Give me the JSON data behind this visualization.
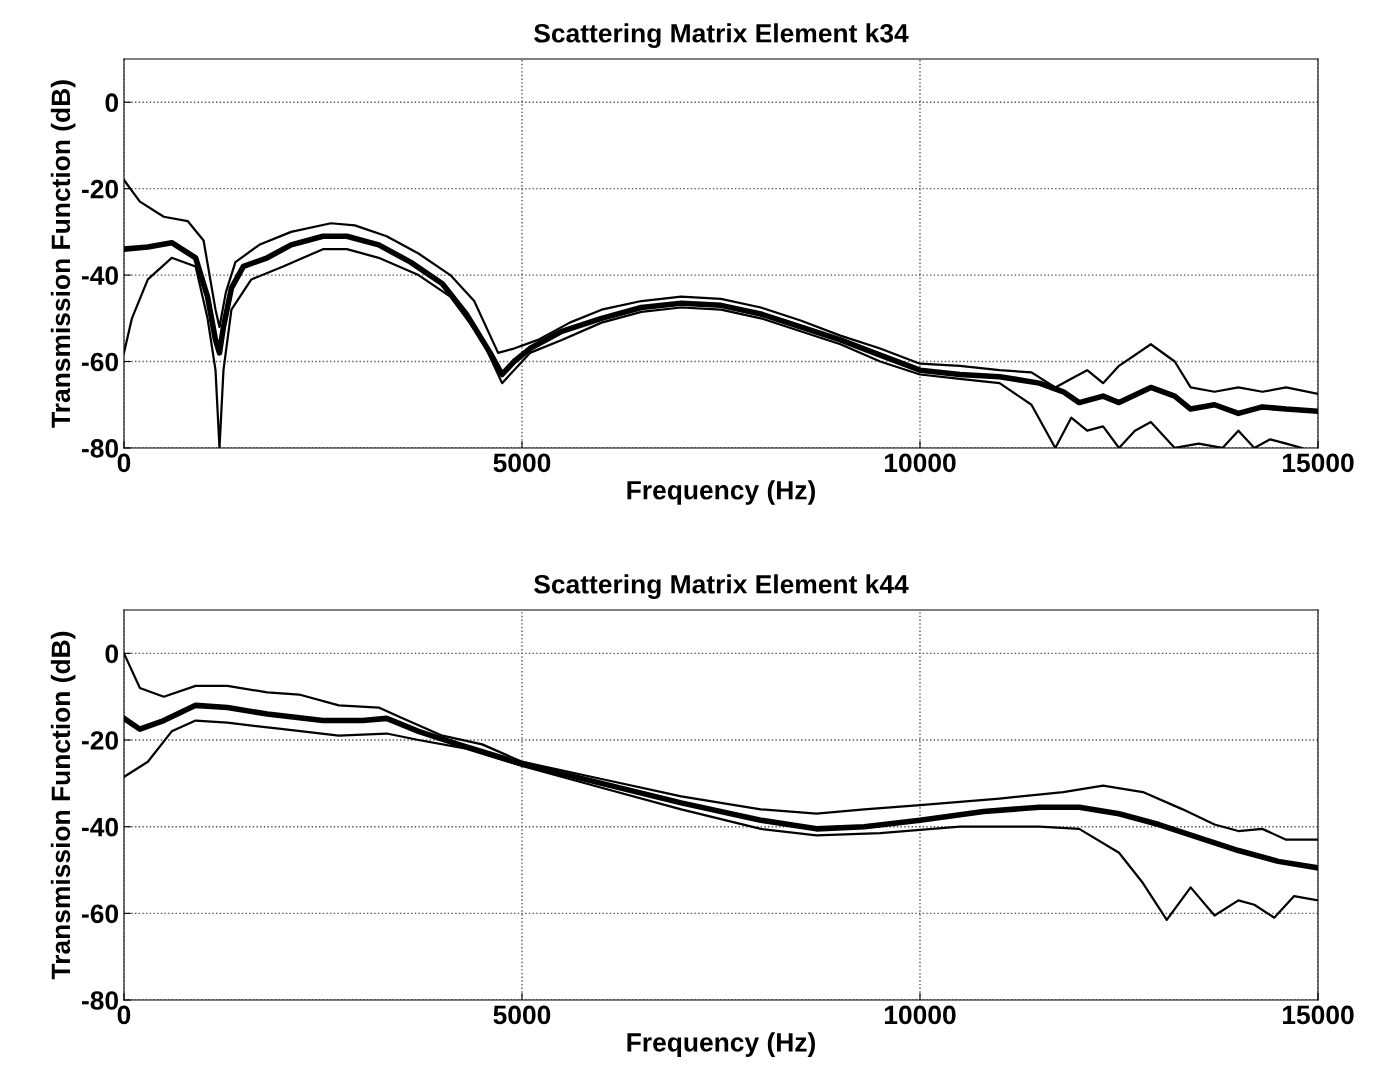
{
  "chart_data": [
    {
      "type": "line",
      "title": "Scattering Matrix Element k34",
      "xlabel": "Frequency (Hz)",
      "ylabel": "Transmission Function (dB)",
      "xlim": [
        0,
        15000
      ],
      "ylim": [
        -80,
        10
      ],
      "xticks": [
        0,
        5000,
        10000,
        15000
      ],
      "yticks": [
        -80,
        -60,
        -40,
        -20,
        0
      ],
      "grid": true,
      "legend": false,
      "marker": "none",
      "line_style": "solid",
      "series": [
        {
          "color": "#000000",
          "x": [
            0,
            300,
            600,
            900,
            1050,
            1150,
            1200,
            1250,
            1350,
            1500,
            1800,
            2100,
            2500,
            2800,
            3200,
            3600,
            4000,
            4300,
            4600,
            4750,
            4900,
            5100,
            5500,
            6000,
            6500,
            7000,
            7500,
            8000,
            8500,
            9000,
            9500,
            10000,
            10500,
            11000,
            11500,
            11800,
            12000,
            12300,
            12500,
            12900,
            13200,
            13400,
            13700,
            14000,
            14300,
            14600,
            15000
          ],
          "values": [
            -34,
            -33.5,
            -32.5,
            -36,
            -45,
            -55,
            -58,
            -52,
            -43,
            -38,
            -36,
            -33,
            -31,
            -31,
            -33,
            -37,
            -42,
            -49,
            -58,
            -63,
            -60,
            -57,
            -53,
            -50,
            -47.5,
            -46.5,
            -47,
            -49,
            -52,
            -55,
            -58.5,
            -62,
            -63,
            -63.5,
            -65,
            -67,
            -69.5,
            -68,
            -69.5,
            -66,
            -68,
            -71,
            -70,
            -72,
            -70.5,
            -71,
            -71.5
          ]
        },
        {
          "color": "#000000",
          "x": [
            0,
            200,
            500,
            800,
            1000,
            1150,
            1200,
            1280,
            1400,
            1700,
            2100,
            2600,
            2900,
            3300,
            3700,
            4100,
            4400,
            4700,
            4900,
            5200,
            5600,
            6000,
            6500,
            7000,
            7500,
            8000,
            8500,
            9000,
            9500,
            10000,
            10500,
            11000,
            11400,
            11700,
            11900,
            12100,
            12300,
            12500,
            12900,
            13200,
            13400,
            13700,
            14000,
            14300,
            14600,
            15000
          ],
          "values": [
            -18,
            -23,
            -26.5,
            -27.5,
            -32,
            -48,
            -52,
            -44,
            -37,
            -33,
            -30,
            -28,
            -28.5,
            -31,
            -35,
            -40,
            -46,
            -58,
            -57,
            -55,
            -51,
            -48,
            -46,
            -45,
            -45.5,
            -47.5,
            -50.5,
            -54,
            -57,
            -60.5,
            -61,
            -62,
            -62.5,
            -66,
            -64,
            -62,
            -65,
            -61,
            -56,
            -60,
            -66,
            -67,
            -66,
            -67,
            -66,
            -67.5
          ]
        },
        {
          "color": "#000000",
          "x": [
            0,
            100,
            300,
            600,
            900,
            1050,
            1150,
            1200,
            1250,
            1350,
            1600,
            2000,
            2500,
            2800,
            3200,
            3700,
            4100,
            4500,
            4750,
            4900,
            5100,
            5500,
            6000,
            6500,
            7000,
            7500,
            8000,
            8500,
            9000,
            9500,
            10000,
            10500,
            11000,
            11400,
            11700,
            11900,
            12100,
            12300,
            12500,
            12700,
            12900,
            13200,
            13500,
            13800,
            14000,
            14200,
            14400,
            14600,
            14800
          ],
          "values": [
            -58,
            -50,
            -41,
            -36,
            -38,
            -50,
            -62,
            -80,
            -62,
            -48,
            -41,
            -38,
            -34,
            -34,
            -36,
            -40,
            -45,
            -55,
            -65,
            -62,
            -58,
            -55,
            -51,
            -48.5,
            -47.5,
            -48,
            -50,
            -53,
            -56,
            -60,
            -63,
            -64,
            -65,
            -70,
            -80,
            -73,
            -76,
            -75,
            -80,
            -76,
            -74,
            -80,
            -79,
            -80,
            -76,
            -80,
            -78,
            -79,
            -80
          ]
        }
      ]
    },
    {
      "type": "line",
      "title": "Scattering Matrix Element k44",
      "xlabel": "Frequency (Hz)",
      "ylabel": "Transmission Function (dB)",
      "xlim": [
        0,
        15000
      ],
      "ylim": [
        -80,
        10
      ],
      "xticks": [
        0,
        5000,
        10000,
        15000
      ],
      "yticks": [
        -80,
        -60,
        -40,
        -20,
        0
      ],
      "grid": true,
      "legend": false,
      "marker": "none",
      "line_style": "solid",
      "series": [
        {
          "color": "#000000",
          "x": [
            0,
            200,
            500,
            900,
            1300,
            1800,
            2500,
            3000,
            3300,
            3700,
            4200,
            5000,
            6000,
            7000,
            8000,
            8700,
            9300,
            10000,
            10800,
            11500,
            12000,
            12500,
            13000,
            13500,
            14000,
            14500,
            15000
          ],
          "values": [
            -15,
            -17.5,
            -15.5,
            -12,
            -12.5,
            -14,
            -15.5,
            -15.5,
            -15,
            -18,
            -21,
            -25.5,
            -30,
            -34.5,
            -38.5,
            -40.5,
            -40,
            -38.5,
            -36.5,
            -35.5,
            -35.5,
            -37,
            -39.5,
            -42.5,
            -45.5,
            -48,
            -49.5
          ]
        },
        {
          "color": "#000000",
          "x": [
            0,
            200,
            500,
            900,
            1300,
            1800,
            2200,
            2700,
            3200,
            3500,
            4000,
            4500,
            5000,
            6000,
            7000,
            8000,
            8700,
            9300,
            10000,
            11000,
            11800,
            12300,
            12800,
            13300,
            13700,
            14000,
            14300,
            14600,
            15000
          ],
          "values": [
            0,
            -8,
            -10,
            -7.5,
            -7.5,
            -9,
            -9.5,
            -12,
            -12.5,
            -15,
            -19,
            -21,
            -25,
            -29,
            -33,
            -36,
            -37,
            -36,
            -35,
            -33.5,
            -32,
            -30.5,
            -32,
            -36,
            -39.5,
            -41,
            -40.5,
            -43,
            -43
          ]
        },
        {
          "color": "#000000",
          "x": [
            0,
            300,
            600,
            900,
            1300,
            2000,
            2700,
            3300,
            3700,
            4300,
            5000,
            6000,
            7000,
            8000,
            8700,
            9500,
            10500,
            11500,
            12000,
            12500,
            12800,
            13100,
            13400,
            13700,
            14000,
            14200,
            14450,
            14700,
            15000
          ],
          "values": [
            -28.5,
            -25,
            -18,
            -15.5,
            -16,
            -17.5,
            -19,
            -18.5,
            -20,
            -22,
            -26,
            -31,
            -36,
            -40.5,
            -42,
            -41.5,
            -40,
            -40,
            -40.5,
            -46,
            -53,
            -61.5,
            -54,
            -60.5,
            -57,
            -58,
            -61,
            -56,
            -57
          ]
        }
      ]
    }
  ]
}
